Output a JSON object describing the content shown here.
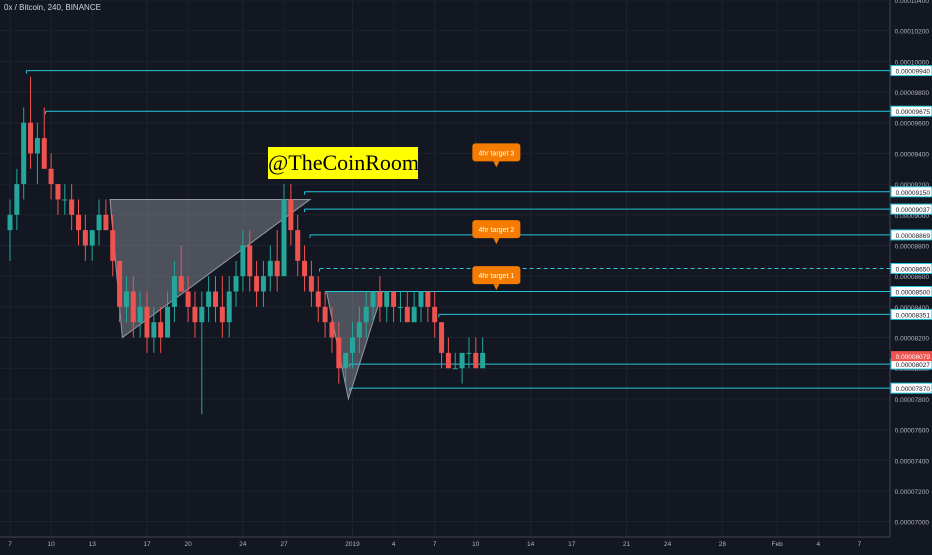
{
  "chart_title": "0x / Bitcoin, 240, BINANCE",
  "watermark": "@TheCoinRoom",
  "colors": {
    "background": "#131722",
    "grid": "#1e222d",
    "axis_text": "#b2b5be",
    "level_line": "#26c6da",
    "bull": "#26a69a",
    "bear": "#ef5350",
    "pattern_fill": "#9598a1",
    "target_callout": "#f57c00",
    "current_price_label": "#ef5350"
  },
  "chart_data": {
    "type": "candlestick",
    "title": "0x / Bitcoin, 240, BINANCE",
    "ylim": [
      6.9e-06,
      1.04e-05
    ],
    "y_ticks": [
      "0.00010400",
      "0.00010200",
      "0.00010000",
      "0.00009800",
      "0.00009600",
      "0.00009400",
      "0.00009200",
      "0.00009000",
      "0.00008800",
      "0.00008600",
      "0.00008400",
      "0.00008200",
      "0.00008000",
      "0.00007800",
      "0.00007600",
      "0.00007400",
      "0.00007200",
      "0.00007000"
    ],
    "y_tick_values": [
      1.04e-05,
      1.02e-05,
      1e-05,
      9.8e-06,
      9.6e-06,
      9.4e-06,
      9.2e-06,
      9e-06,
      8.8e-06,
      8.6e-06,
      8.4e-06,
      8.2e-06,
      8e-06,
      7.8e-06,
      7.6e-06,
      7.4e-06,
      7.2e-06,
      7e-06
    ],
    "x_ticks": [
      "7",
      "10",
      "13",
      "17",
      "20",
      "24",
      "27",
      "2019",
      "4",
      "7",
      "10",
      "14",
      "17",
      "21",
      "24",
      "28",
      "Feb",
      "4",
      "7"
    ],
    "x_tick_index": [
      0,
      3,
      6,
      10,
      13,
      17,
      20,
      25,
      28,
      31,
      34,
      38,
      41,
      45,
      48,
      52,
      56,
      59,
      62
    ],
    "levels": [
      {
        "label": "0.00009940",
        "value": 9.94e-06,
        "start_index": 1.2
      },
      {
        "label": "0.00009675",
        "value": 9.675e-06,
        "start_index": 2.6
      },
      {
        "label": "0.00009150",
        "value": 9.15e-06,
        "start_index": 21.5
      },
      {
        "label": "0.00009037",
        "value": 9.037e-06,
        "start_index": 21.5
      },
      {
        "label": "0.00008869",
        "value": 8.869e-06,
        "start_index": 21.9
      },
      {
        "label": "0.00008650",
        "value": 8.65e-06,
        "start_index": 22.6,
        "dashed": true
      },
      {
        "label": "0.00008500",
        "value": 8.5e-06,
        "start_index": 23.0
      },
      {
        "label": "0.00008351",
        "value": 8.351e-06,
        "start_index": 31.3
      },
      {
        "label": "0.00008027",
        "value": 8.027e-06,
        "start_index": 24.8
      },
      {
        "label": "0.00007870",
        "value": 7.87e-06,
        "start_index": 24.8
      }
    ],
    "current_price": {
      "label": "0.00008079",
      "value": 8.079e-06
    },
    "targets": [
      {
        "label": "4hr target 3",
        "index": 35.5,
        "value": 9.4e-06
      },
      {
        "label": "4hr target 2",
        "index": 35.5,
        "value": 8.9e-06
      },
      {
        "label": "4hr target 1",
        "index": 35.5,
        "value": 8.6e-06
      }
    ],
    "patterns": [
      {
        "points": [
          [
            7.3,
            9.1e-06
          ],
          [
            21.9,
            9.1e-06
          ],
          [
            8.2,
            8.2e-06
          ]
        ]
      },
      {
        "points": [
          [
            23.1,
            8.5e-06
          ],
          [
            27.2,
            8.5e-06
          ],
          [
            24.7,
            7.8e-06
          ]
        ]
      }
    ],
    "candles": [
      {
        "i": 0.0,
        "o": 8.9e-06,
        "h": 9.1e-06,
        "l": 8.7e-06,
        "c": 9e-06
      },
      {
        "i": 0.5,
        "o": 9e-06,
        "h": 9.3e-06,
        "l": 8.9e-06,
        "c": 9.2e-06
      },
      {
        "i": 1.0,
        "o": 9.2e-06,
        "h": 9.7e-06,
        "l": 9.1e-06,
        "c": 9.6e-06
      },
      {
        "i": 1.5,
        "o": 9.6e-06,
        "h": 9.9e-06,
        "l": 9.3e-06,
        "c": 9.4e-06
      },
      {
        "i": 2.0,
        "o": 9.4e-06,
        "h": 9.6e-06,
        "l": 9.2e-06,
        "c": 9.5e-06
      },
      {
        "i": 2.5,
        "o": 9.5e-06,
        "h": 9.7e-06,
        "l": 9.3e-06,
        "c": 9.3e-06
      },
      {
        "i": 3.0,
        "o": 9.3e-06,
        "h": 9.4e-06,
        "l": 9.1e-06,
        "c": 9.2e-06
      },
      {
        "i": 3.5,
        "o": 9.2e-06,
        "h": 9.2e-06,
        "l": 9e-06,
        "c": 9.1e-06
      },
      {
        "i": 4.0,
        "o": 9.1e-06,
        "h": 9.2e-06,
        "l": 9e-06,
        "c": 9.1e-06
      },
      {
        "i": 4.5,
        "o": 9.1e-06,
        "h": 9.2e-06,
        "l": 8.9e-06,
        "c": 9e-06
      },
      {
        "i": 5.0,
        "o": 9e-06,
        "h": 9.1e-06,
        "l": 8.8e-06,
        "c": 8.9e-06
      },
      {
        "i": 5.5,
        "o": 8.9e-06,
        "h": 9e-06,
        "l": 8.7e-06,
        "c": 8.8e-06
      },
      {
        "i": 6.0,
        "o": 8.8e-06,
        "h": 8.9e-06,
        "l": 8.7e-06,
        "c": 8.9e-06
      },
      {
        "i": 6.5,
        "o": 8.9e-06,
        "h": 9.1e-06,
        "l": 8.8e-06,
        "c": 9e-06
      },
      {
        "i": 7.0,
        "o": 9e-06,
        "h": 9.1e-06,
        "l": 8.9e-06,
        "c": 8.9e-06
      },
      {
        "i": 7.5,
        "o": 8.9e-06,
        "h": 9e-06,
        "l": 8.6e-06,
        "c": 8.7e-06
      },
      {
        "i": 8.0,
        "o": 8.7e-06,
        "h": 8.7e-06,
        "l": 8.3e-06,
        "c": 8.4e-06
      },
      {
        "i": 8.5,
        "o": 8.4e-06,
        "h": 8.6e-06,
        "l": 8.3e-06,
        "c": 8.5e-06
      },
      {
        "i": 9.0,
        "o": 8.5e-06,
        "h": 8.6e-06,
        "l": 8.2e-06,
        "c": 8.3e-06
      },
      {
        "i": 9.5,
        "o": 8.3e-06,
        "h": 8.5e-06,
        "l": 8.2e-06,
        "c": 8.4e-06
      },
      {
        "i": 10.0,
        "o": 8.4e-06,
        "h": 8.5e-06,
        "l": 8.1e-06,
        "c": 8.2e-06
      },
      {
        "i": 10.5,
        "o": 8.2e-06,
        "h": 8.4e-06,
        "l": 8.1e-06,
        "c": 8.3e-06
      },
      {
        "i": 11.0,
        "o": 8.3e-06,
        "h": 8.4e-06,
        "l": 8.1e-06,
        "c": 8.2e-06
      },
      {
        "i": 11.5,
        "o": 8.2e-06,
        "h": 8.5e-06,
        "l": 8.2e-06,
        "c": 8.4e-06
      },
      {
        "i": 12.0,
        "o": 8.4e-06,
        "h": 8.7e-06,
        "l": 8.3e-06,
        "c": 8.6e-06
      },
      {
        "i": 12.5,
        "o": 8.6e-06,
        "h": 8.8e-06,
        "l": 8.5e-06,
        "c": 8.5e-06
      },
      {
        "i": 13.0,
        "o": 8.5e-06,
        "h": 8.6e-06,
        "l": 8.3e-06,
        "c": 8.4e-06
      },
      {
        "i": 13.5,
        "o": 8.4e-06,
        "h": 8.5e-06,
        "l": 8.2e-06,
        "c": 8.3e-06
      },
      {
        "i": 14.0,
        "o": 8.3e-06,
        "h": 8.5e-06,
        "l": 7.7e-06,
        "c": 8.4e-06
      },
      {
        "i": 14.5,
        "o": 8.4e-06,
        "h": 8.6e-06,
        "l": 8.3e-06,
        "c": 8.5e-06
      },
      {
        "i": 15.0,
        "o": 8.5e-06,
        "h": 8.6e-06,
        "l": 8.3e-06,
        "c": 8.4e-06
      },
      {
        "i": 15.5,
        "o": 8.4e-06,
        "h": 8.6e-06,
        "l": 8.2e-06,
        "c": 8.3e-06
      },
      {
        "i": 16.0,
        "o": 8.3e-06,
        "h": 8.6e-06,
        "l": 8.2e-06,
        "c": 8.5e-06
      },
      {
        "i": 16.5,
        "o": 8.5e-06,
        "h": 8.7e-06,
        "l": 8.4e-06,
        "c": 8.6e-06
      },
      {
        "i": 17.0,
        "o": 8.6e-06,
        "h": 8.9e-06,
        "l": 8.5e-06,
        "c": 8.8e-06
      },
      {
        "i": 17.5,
        "o": 8.8e-06,
        "h": 8.9e-06,
        "l": 8.5e-06,
        "c": 8.6e-06
      },
      {
        "i": 18.0,
        "o": 8.6e-06,
        "h": 8.7e-06,
        "l": 8.4e-06,
        "c": 8.5e-06
      },
      {
        "i": 18.5,
        "o": 8.5e-06,
        "h": 8.7e-06,
        "l": 8.4e-06,
        "c": 8.6e-06
      },
      {
        "i": 19.0,
        "o": 8.6e-06,
        "h": 8.8e-06,
        "l": 8.5e-06,
        "c": 8.7e-06
      },
      {
        "i": 19.5,
        "o": 8.7e-06,
        "h": 8.9e-06,
        "l": 8.5e-06,
        "c": 8.6e-06
      },
      {
        "i": 20.0,
        "o": 8.6e-06,
        "h": 9.2e-06,
        "l": 8.6e-06,
        "c": 9.1e-06
      },
      {
        "i": 20.5,
        "o": 9.1e-06,
        "h": 9.2e-06,
        "l": 8.8e-06,
        "c": 8.9e-06
      },
      {
        "i": 21.0,
        "o": 8.9e-06,
        "h": 9e-06,
        "l": 8.6e-06,
        "c": 8.7e-06
      },
      {
        "i": 21.5,
        "o": 8.7e-06,
        "h": 8.8e-06,
        "l": 8.5e-06,
        "c": 8.6e-06
      },
      {
        "i": 22.0,
        "o": 8.6e-06,
        "h": 8.7e-06,
        "l": 8.4e-06,
        "c": 8.5e-06
      },
      {
        "i": 22.5,
        "o": 8.5e-06,
        "h": 8.6e-06,
        "l": 8.3e-06,
        "c": 8.4e-06
      },
      {
        "i": 23.0,
        "o": 8.4e-06,
        "h": 8.5e-06,
        "l": 8.2e-06,
        "c": 8.3e-06
      },
      {
        "i": 23.5,
        "o": 8.3e-06,
        "h": 8.4e-06,
        "l": 8.1e-06,
        "c": 8.2e-06
      },
      {
        "i": 24.0,
        "o": 8.2e-06,
        "h": 8.3e-06,
        "l": 7.9e-06,
        "c": 8e-06
      },
      {
        "i": 24.5,
        "o": 8e-06,
        "h": 8.1e-06,
        "l": 7.9e-06,
        "c": 8.1e-06
      },
      {
        "i": 25.0,
        "o": 8.1e-06,
        "h": 8.3e-06,
        "l": 8e-06,
        "c": 8.2e-06
      },
      {
        "i": 25.5,
        "o": 8.2e-06,
        "h": 8.4e-06,
        "l": 8.1e-06,
        "c": 8.3e-06
      },
      {
        "i": 26.0,
        "o": 8.3e-06,
        "h": 8.5e-06,
        "l": 8.2e-06,
        "c": 8.4e-06
      },
      {
        "i": 26.5,
        "o": 8.4e-06,
        "h": 8.5e-06,
        "l": 8.3e-06,
        "c": 8.5e-06
      },
      {
        "i": 27.0,
        "o": 8.5e-06,
        "h": 8.6e-06,
        "l": 8.3e-06,
        "c": 8.4e-06
      },
      {
        "i": 27.5,
        "o": 8.4e-06,
        "h": 8.5e-06,
        "l": 8.3e-06,
        "c": 8.5e-06
      },
      {
        "i": 28.0,
        "o": 8.5e-06,
        "h": 8.5e-06,
        "l": 8.3e-06,
        "c": 8.4e-06
      },
      {
        "i": 28.5,
        "o": 8.4e-06,
        "h": 8.5e-06,
        "l": 8.3e-06,
        "c": 8.4e-06
      },
      {
        "i": 29.0,
        "o": 8.4e-06,
        "h": 8.5e-06,
        "l": 8.3e-06,
        "c": 8.3e-06
      },
      {
        "i": 29.5,
        "o": 8.3e-06,
        "h": 8.5e-06,
        "l": 8.3e-06,
        "c": 8.4e-06
      },
      {
        "i": 30.0,
        "o": 8.4e-06,
        "h": 8.5e-06,
        "l": 8.3e-06,
        "c": 8.5e-06
      },
      {
        "i": 30.5,
        "o": 8.5e-06,
        "h": 8.5e-06,
        "l": 8.3e-06,
        "c": 8.4e-06
      },
      {
        "i": 31.0,
        "o": 8.4e-06,
        "h": 8.5e-06,
        "l": 8.2e-06,
        "c": 8.3e-06
      },
      {
        "i": 31.5,
        "o": 8.3e-06,
        "h": 8.3e-06,
        "l": 8e-06,
        "c": 8.1e-06
      },
      {
        "i": 32.0,
        "o": 8.1e-06,
        "h": 8.2e-06,
        "l": 8e-06,
        "c": 8e-06
      },
      {
        "i": 32.5,
        "o": 8e-06,
        "h": 8.1e-06,
        "l": 8e-06,
        "c": 8e-06
      },
      {
        "i": 33.0,
        "o": 8e-06,
        "h": 8.1e-06,
        "l": 7.9e-06,
        "c": 8.1e-06
      },
      {
        "i": 33.5,
        "o": 8.1e-06,
        "h": 8.2e-06,
        "l": 8e-06,
        "c": 8.1e-06
      },
      {
        "i": 34.0,
        "o": 8.1e-06,
        "h": 8.2e-06,
        "l": 8e-06,
        "c": 8e-06
      },
      {
        "i": 34.5,
        "o": 8e-06,
        "h": 8.2e-06,
        "l": 8e-06,
        "c": 8.1e-06
      }
    ]
  }
}
